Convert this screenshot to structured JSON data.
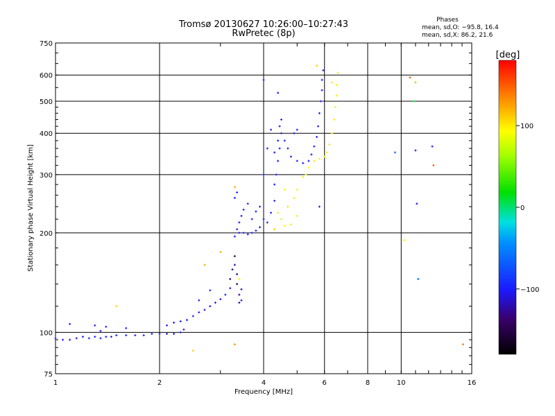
{
  "chart_data": {
    "type": "scatter",
    "title": "Tromsø 20130627 10:26:00–10:27:43",
    "subtitle": "RwPretec (8p)",
    "xlabel": "Frequency [MHz]",
    "ylabel": "Stationary phase Virtual Height [km]",
    "x_scale": "log",
    "y_scale": "log",
    "xlim": [
      1,
      16
    ],
    "ylim": [
      75,
      750
    ],
    "x_ticks": [
      1,
      2,
      4,
      6,
      8,
      10,
      16
    ],
    "x_tick_labels": [
      "1",
      "2",
      "4",
      "6",
      "8",
      "10",
      "16"
    ],
    "y_ticks": [
      75,
      100,
      200,
      300,
      400,
      500,
      600,
      750
    ],
    "y_tick_labels": [
      "75",
      "100",
      "200",
      "300",
      "400",
      "500",
      "600",
      "750"
    ],
    "grid": true,
    "phase_legend": {
      "heading": "Phases",
      "line_o": "mean, sd,O: −95.8, 16.4",
      "line_x": "mean, sd,X:  86.2, 21.6"
    },
    "colorbar": {
      "label": "[deg]",
      "range": [
        -180,
        180
      ],
      "ticks": [
        100,
        0,
        -100
      ],
      "tick_labels": [
        "100",
        "0",
        "−100"
      ]
    },
    "series": [
      {
        "points": [
          [
            1.0,
            96,
            -100
          ],
          [
            1.05,
            95,
            -100
          ],
          [
            1.1,
            95,
            -105
          ],
          [
            1.15,
            96,
            -100
          ],
          [
            1.2,
            97,
            -100
          ],
          [
            1.25,
            96,
            -95
          ],
          [
            1.3,
            97,
            -100
          ],
          [
            1.35,
            96,
            -100
          ],
          [
            1.4,
            97,
            -100
          ],
          [
            1.45,
            97,
            -105
          ],
          [
            1.5,
            98,
            -100
          ],
          [
            1.6,
            98,
            -100
          ],
          [
            1.7,
            98,
            -100
          ],
          [
            1.8,
            98,
            -100
          ],
          [
            1.9,
            99,
            -100
          ],
          [
            2.0,
            99,
            -100
          ],
          [
            2.1,
            99,
            -100
          ],
          [
            2.2,
            99,
            -100
          ],
          [
            2.3,
            100,
            -100
          ],
          [
            2.35,
            102,
            -100
          ],
          [
            2.1,
            105,
            -100
          ],
          [
            2.2,
            107,
            -100
          ],
          [
            2.3,
            108,
            -100
          ],
          [
            2.4,
            109,
            -100
          ],
          [
            2.5,
            112,
            -100
          ],
          [
            2.6,
            115,
            -100
          ],
          [
            2.7,
            117,
            -100
          ],
          [
            2.8,
            120,
            -100
          ],
          [
            2.9,
            123,
            -100
          ],
          [
            3.0,
            126,
            -100
          ],
          [
            3.1,
            130,
            -100
          ],
          [
            3.2,
            136,
            -100
          ],
          [
            2.8,
            134,
            -95
          ],
          [
            2.6,
            125,
            -100
          ],
          [
            1.1,
            106,
            -105
          ],
          [
            1.3,
            105,
            -100
          ],
          [
            1.4,
            104,
            -100
          ],
          [
            1.6,
            103,
            -100
          ],
          [
            1.35,
            101,
            -100
          ],
          [
            3.2,
            145,
            -140
          ],
          [
            3.25,
            155,
            -130
          ],
          [
            3.3,
            160,
            -120
          ],
          [
            3.3,
            170,
            -140
          ],
          [
            3.35,
            140,
            -150
          ],
          [
            3.4,
            130,
            -130
          ],
          [
            3.4,
            123,
            -120
          ],
          [
            3.45,
            125,
            -110
          ],
          [
            3.45,
            135,
            -120
          ],
          [
            3.35,
            150,
            -140
          ],
          [
            3.3,
            195,
            -100
          ],
          [
            3.35,
            205,
            -100
          ],
          [
            3.4,
            215,
            -105
          ],
          [
            3.45,
            225,
            -100
          ],
          [
            3.5,
            235,
            -100
          ],
          [
            3.4,
            200,
            -100
          ],
          [
            3.5,
            200,
            -95
          ],
          [
            3.6,
            198,
            -100
          ],
          [
            3.7,
            200,
            -100
          ],
          [
            3.8,
            203,
            -100
          ],
          [
            3.9,
            208,
            -100
          ],
          [
            3.3,
            255,
            -100
          ],
          [
            3.35,
            265,
            -100
          ],
          [
            3.6,
            245,
            -100
          ],
          [
            3.7,
            220,
            -100
          ],
          [
            3.8,
            232,
            -100
          ],
          [
            3.9,
            240,
            -100
          ],
          [
            4.0,
            220,
            -100
          ],
          [
            4.1,
            215,
            -100
          ],
          [
            4.2,
            230,
            -100
          ],
          [
            4.3,
            250,
            -100
          ],
          [
            4.3,
            280,
            -100
          ],
          [
            4.35,
            300,
            -100
          ],
          [
            4.4,
            330,
            -100
          ],
          [
            4.45,
            360,
            -100
          ],
          [
            4.5,
            400,
            -100
          ],
          [
            4.45,
            420,
            -100
          ],
          [
            4.5,
            440,
            -100
          ],
          [
            4.4,
            380,
            -100
          ],
          [
            4.3,
            350,
            -100
          ],
          [
            4.6,
            380,
            -100
          ],
          [
            4.7,
            360,
            -100
          ],
          [
            4.8,
            340,
            -100
          ],
          [
            5.0,
            330,
            -100
          ],
          [
            5.2,
            325,
            -100
          ],
          [
            5.4,
            330,
            -100
          ],
          [
            5.5,
            345,
            -100
          ],
          [
            5.6,
            365,
            -100
          ],
          [
            5.7,
            390,
            -100
          ],
          [
            5.75,
            420,
            -100
          ],
          [
            5.8,
            460,
            -100
          ],
          [
            5.85,
            500,
            -100
          ],
          [
            5.9,
            540,
            -100
          ],
          [
            5.9,
            580,
            -100
          ],
          [
            5.95,
            620,
            -100
          ],
          [
            4.2,
            410,
            -100
          ],
          [
            4.1,
            360,
            -100
          ],
          [
            4.0,
            300,
            -100
          ],
          [
            4.9,
            400,
            -100
          ],
          [
            5.0,
            410,
            -100
          ],
          [
            4.0,
            580,
            -100
          ],
          [
            4.4,
            530,
            -100
          ],
          [
            5.8,
            240,
            -100
          ],
          [
            4.4,
            230,
            100
          ],
          [
            4.5,
            220,
            100
          ],
          [
            4.6,
            210,
            100
          ],
          [
            4.8,
            212,
            100
          ],
          [
            5.0,
            225,
            100
          ],
          [
            4.7,
            240,
            105
          ],
          [
            4.9,
            255,
            100
          ],
          [
            5.0,
            270,
            100
          ],
          [
            5.2,
            295,
            100
          ],
          [
            5.4,
            315,
            95
          ],
          [
            5.6,
            330,
            100
          ],
          [
            5.8,
            335,
            95
          ],
          [
            6.0,
            340,
            100
          ],
          [
            6.1,
            350,
            100
          ],
          [
            6.2,
            370,
            100
          ],
          [
            6.3,
            400,
            100
          ],
          [
            6.4,
            440,
            100
          ],
          [
            6.45,
            480,
            100
          ],
          [
            6.5,
            520,
            100
          ],
          [
            6.5,
            560,
            100
          ],
          [
            6.55,
            610,
            100
          ],
          [
            6.3,
            570,
            100
          ],
          [
            4.6,
            270,
            100
          ],
          [
            4.3,
            205,
            110
          ],
          [
            5.3,
            300,
            90
          ],
          [
            3.3,
            275,
            120
          ],
          [
            3.4,
            145,
            100
          ],
          [
            3.0,
            175,
            120
          ],
          [
            2.7,
            160,
            120
          ],
          [
            2.5,
            88,
            110
          ],
          [
            1.5,
            120,
            110
          ],
          [
            3.3,
            92,
            130
          ],
          [
            5.7,
            640,
            110
          ],
          [
            9.6,
            350,
            -60
          ],
          [
            10.6,
            590,
            150
          ],
          [
            11.0,
            570,
            120
          ],
          [
            11.0,
            355,
            -100
          ],
          [
            11.1,
            245,
            -100
          ],
          [
            11.2,
            145,
            -60
          ],
          [
            12.3,
            365,
            -100
          ],
          [
            12.4,
            320,
            150
          ],
          [
            10.2,
            190,
            90
          ],
          [
            10.9,
            500,
            10
          ],
          [
            15.1,
            92,
            140
          ]
        ]
      }
    ]
  }
}
